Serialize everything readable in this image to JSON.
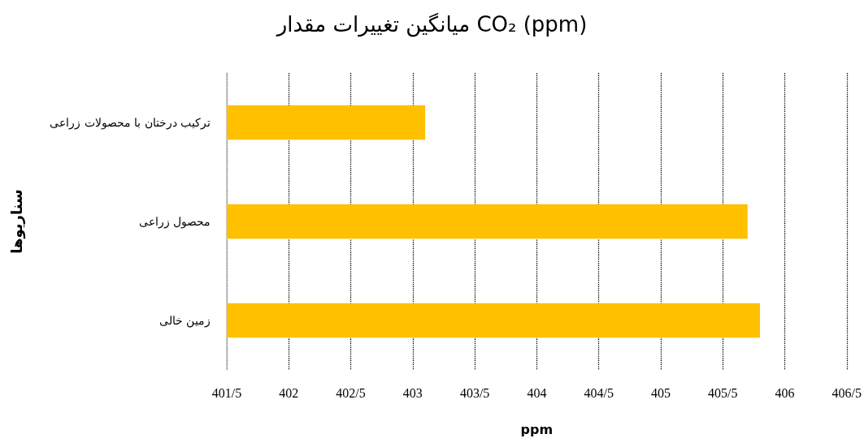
{
  "chart_data": {
    "type": "bar",
    "orientation": "horizontal",
    "title": "میانگین تغییرات مقدار CO₂ (ppm)",
    "xlabel": "ppm",
    "ylabel": "سناریوها",
    "categories": [
      "ترکیب درختان با محصولات زراعی",
      "محصول زراعی",
      "زمین خالی"
    ],
    "values": [
      403.1,
      405.7,
      405.8
    ],
    "color": "#ffc000",
    "xlim": [
      401.5,
      406.5
    ],
    "xticks": [
      {
        "value": 401.5,
        "label": "401/5"
      },
      402,
      {
        "value": 402.5,
        "label": "402/5"
      },
      403,
      {
        "value": 403.5,
        "label": "403/5"
      },
      404,
      {
        "value": 404.5,
        "label": "404/5"
      },
      405,
      {
        "value": 405.5,
        "label": "405/5"
      },
      406,
      {
        "value": 406.5,
        "label": "406/5"
      }
    ],
    "grid": "x"
  }
}
